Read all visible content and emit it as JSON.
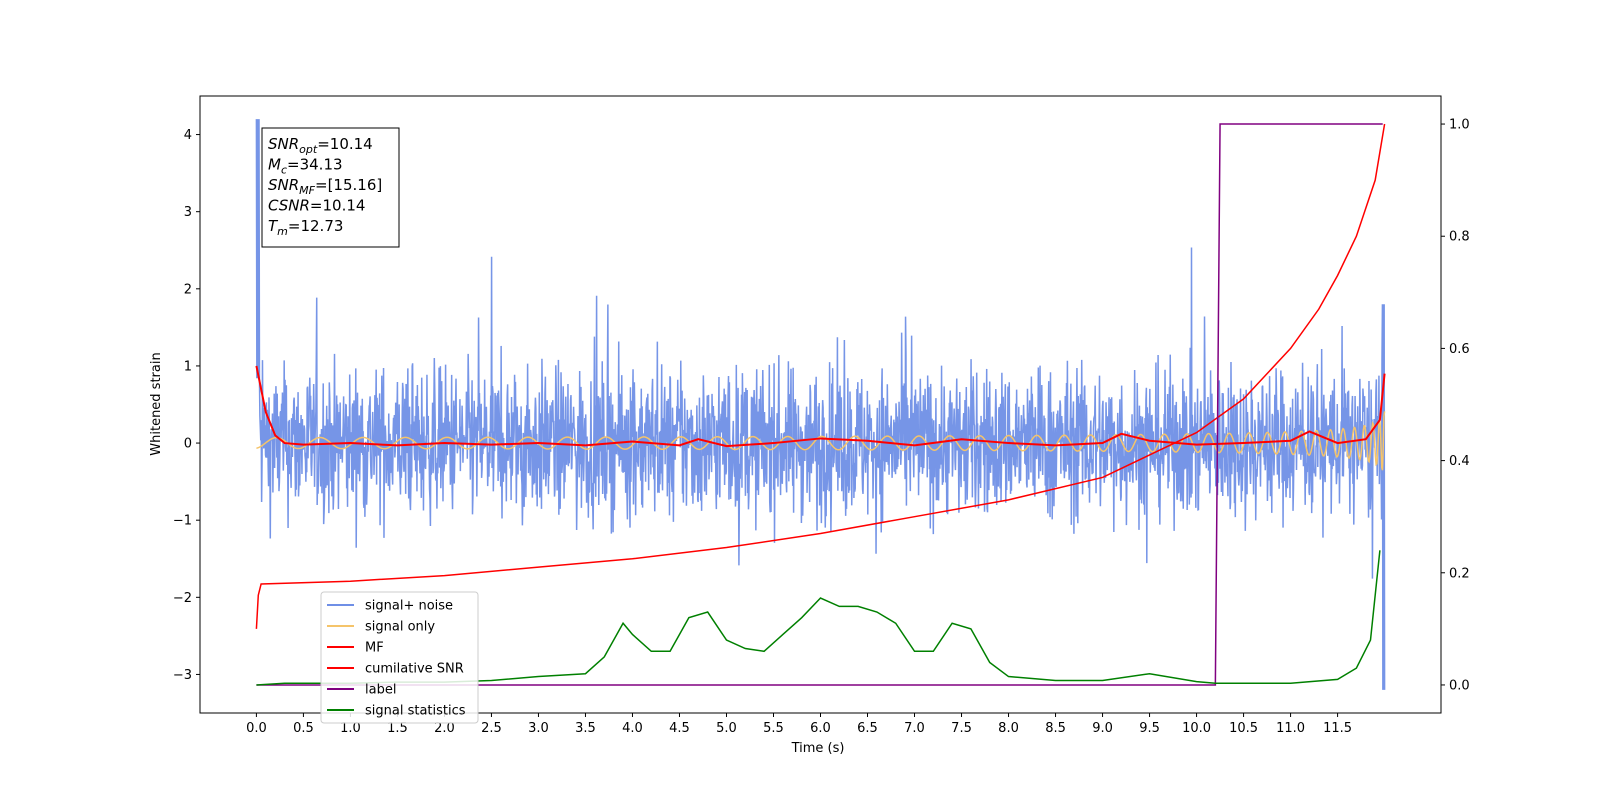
{
  "chart_data": {
    "type": "line",
    "xlabel": "Time (s)",
    "ylabel_left": "Whitened strain",
    "ylabel_right": "",
    "xlim": [
      -0.6,
      12.6
    ],
    "ylim_left": [
      -3.5,
      4.5
    ],
    "ylim_right": [
      -0.05,
      1.05
    ],
    "x_ticks": [
      "0.0",
      "0.5",
      "1.0",
      "1.5",
      "2.0",
      "2.5",
      "3.0",
      "3.5",
      "4.0",
      "4.5",
      "5.0",
      "5.5",
      "6.0",
      "6.5",
      "7.0",
      "7.5",
      "8.0",
      "8.5",
      "9.0",
      "9.5",
      "10.0",
      "10.5",
      "11.0",
      "11.5"
    ],
    "y_ticks_left": [
      "−3",
      "−2",
      "−1",
      "0",
      "1",
      "2",
      "3",
      "4"
    ],
    "y_ticks_right": [
      "0.0",
      "0.2",
      "0.4",
      "0.6",
      "0.8",
      "1.0"
    ],
    "annotation": [
      {
        "base": "SNR",
        "sub": "opt",
        "value": "=10.14"
      },
      {
        "base": "M",
        "sub": "c",
        "value": "=34.13"
      },
      {
        "base": "SNR",
        "sub": "MF",
        "value": "=[15.16]"
      },
      {
        "base": "CSNR",
        "sub": "",
        "value": "=10.14"
      },
      {
        "base": "T",
        "sub": "m",
        "value": "=12.73"
      }
    ],
    "legend": [
      {
        "label": "signal+ noise",
        "color": "#6f8fe6"
      },
      {
        "label": "signal only",
        "color": "#f5c46a"
      },
      {
        "label": "MF",
        "color": "#ff0000"
      },
      {
        "label": "cumilative SNR",
        "color": "#ff0000"
      },
      {
        "label": "label",
        "color": "#800080"
      },
      {
        "label": "signal statistics",
        "color": "#008000"
      }
    ],
    "legend_position": "lower-left",
    "series": [
      {
        "name": "signal+ noise",
        "axis": "left",
        "color": "#6f8fe6",
        "style": "noise",
        "x_range": [
          0.0,
          12.0
        ],
        "amplitude": 0.75,
        "peak_values": [
          4.2,
          -3.2
        ]
      },
      {
        "name": "signal only",
        "axis": "left",
        "color": "#f5c46a",
        "style": "chirp",
        "x_range": [
          0.0,
          12.0
        ],
        "amplitude_end": 1.0
      },
      {
        "name": "MF",
        "axis": "left",
        "color": "#ff0000",
        "x": [
          0.0,
          0.05,
          0.1,
          0.2,
          0.3,
          0.5,
          1.0,
          1.5,
          2.0,
          2.5,
          3.0,
          3.5,
          4.0,
          4.5,
          4.7,
          5.0,
          5.5,
          6.0,
          6.5,
          7.0,
          7.5,
          8.0,
          8.5,
          9.0,
          9.2,
          9.5,
          10.0,
          10.5,
          11.0,
          11.2,
          11.5,
          11.8,
          11.95,
          12.0
        ],
        "y": [
          1.0,
          0.7,
          0.4,
          0.1,
          0.0,
          -0.02,
          0.0,
          -0.03,
          0.0,
          -0.02,
          0.0,
          -0.03,
          0.02,
          -0.03,
          0.05,
          -0.04,
          0.0,
          0.06,
          0.03,
          -0.03,
          0.05,
          0.0,
          -0.03,
          0.0,
          0.12,
          0.03,
          -0.02,
          0.0,
          0.03,
          0.15,
          0.0,
          0.05,
          0.3,
          0.9
        ]
      },
      {
        "name": "cumilative SNR",
        "axis": "right",
        "color": "#ff0000",
        "x": [
          0.0,
          0.02,
          0.05,
          1.0,
          2.0,
          3.0,
          4.0,
          5.0,
          6.0,
          7.0,
          8.0,
          9.0,
          9.5,
          10.0,
          10.5,
          11.0,
          11.3,
          11.5,
          11.7,
          11.9,
          12.0
        ],
        "y": [
          0.1,
          0.16,
          0.18,
          0.185,
          0.195,
          0.21,
          0.225,
          0.245,
          0.27,
          0.3,
          0.33,
          0.37,
          0.41,
          0.45,
          0.51,
          0.6,
          0.67,
          0.73,
          0.8,
          0.9,
          1.0
        ]
      },
      {
        "name": "label",
        "axis": "right",
        "color": "#800080",
        "x": [
          0.0,
          10.2,
          10.25,
          11.98
        ],
        "y": [
          0.0,
          0.0,
          1.0,
          1.0
        ]
      },
      {
        "name": "signal statistics",
        "axis": "right",
        "color": "#008000",
        "x": [
          0.0,
          0.3,
          0.5,
          1.0,
          1.5,
          2.0,
          2.5,
          3.0,
          3.5,
          3.7,
          3.9,
          4.0,
          4.2,
          4.4,
          4.6,
          4.8,
          5.0,
          5.2,
          5.4,
          5.6,
          5.8,
          6.0,
          6.2,
          6.4,
          6.6,
          6.8,
          7.0,
          7.2,
          7.4,
          7.6,
          7.8,
          8.0,
          8.5,
          9.0,
          9.5,
          10.0,
          10.2,
          10.5,
          11.0,
          11.5,
          11.7,
          11.85,
          11.95
        ],
        "y": [
          0.0,
          0.003,
          0.003,
          0.003,
          0.005,
          0.005,
          0.008,
          0.015,
          0.02,
          0.05,
          0.11,
          0.09,
          0.06,
          0.06,
          0.12,
          0.13,
          0.08,
          0.065,
          0.06,
          0.09,
          0.12,
          0.155,
          0.14,
          0.14,
          0.13,
          0.11,
          0.06,
          0.06,
          0.11,
          0.1,
          0.04,
          0.015,
          0.008,
          0.008,
          0.02,
          0.006,
          0.003,
          0.003,
          0.003,
          0.01,
          0.03,
          0.08,
          0.24
        ]
      }
    ]
  }
}
